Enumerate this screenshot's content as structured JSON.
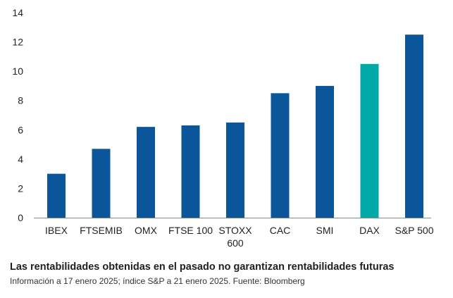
{
  "chart_data": {
    "type": "bar",
    "categories": [
      "IBEX",
      "FTSEMIB",
      "OMX",
      "FTSE 100",
      "STOXX 600",
      "CAC",
      "SMI",
      "DAX",
      "S&P 500"
    ],
    "category_lines": [
      [
        "IBEX"
      ],
      [
        "FTSEMIB"
      ],
      [
        "OMX"
      ],
      [
        "FTSE 100"
      ],
      [
        "STOXX",
        "600"
      ],
      [
        "CAC"
      ],
      [
        "SMI"
      ],
      [
        "DAX"
      ],
      [
        "S&P 500"
      ]
    ],
    "values": [
      3.0,
      4.7,
      6.2,
      6.3,
      6.5,
      8.5,
      9.0,
      10.5,
      12.5
    ],
    "highlight_index": 7,
    "ylim": [
      0,
      14
    ],
    "yticks": [
      0,
      2,
      4,
      6,
      8,
      10,
      12,
      14
    ],
    "grid": false,
    "title": "",
    "xlabel": "",
    "ylabel": ""
  },
  "colors": {
    "bar": "#0b559a",
    "highlight": "#00aaa6",
    "axis": "#888888",
    "text": "#222222"
  },
  "footer": {
    "title": "Las rentabilidades obtenidas en el pasado no garantizan rentabilidades futuras",
    "note": "Información a 17 enero 2025; índice S&P a 21 enero 2025. Fuente: Bloomberg"
  }
}
